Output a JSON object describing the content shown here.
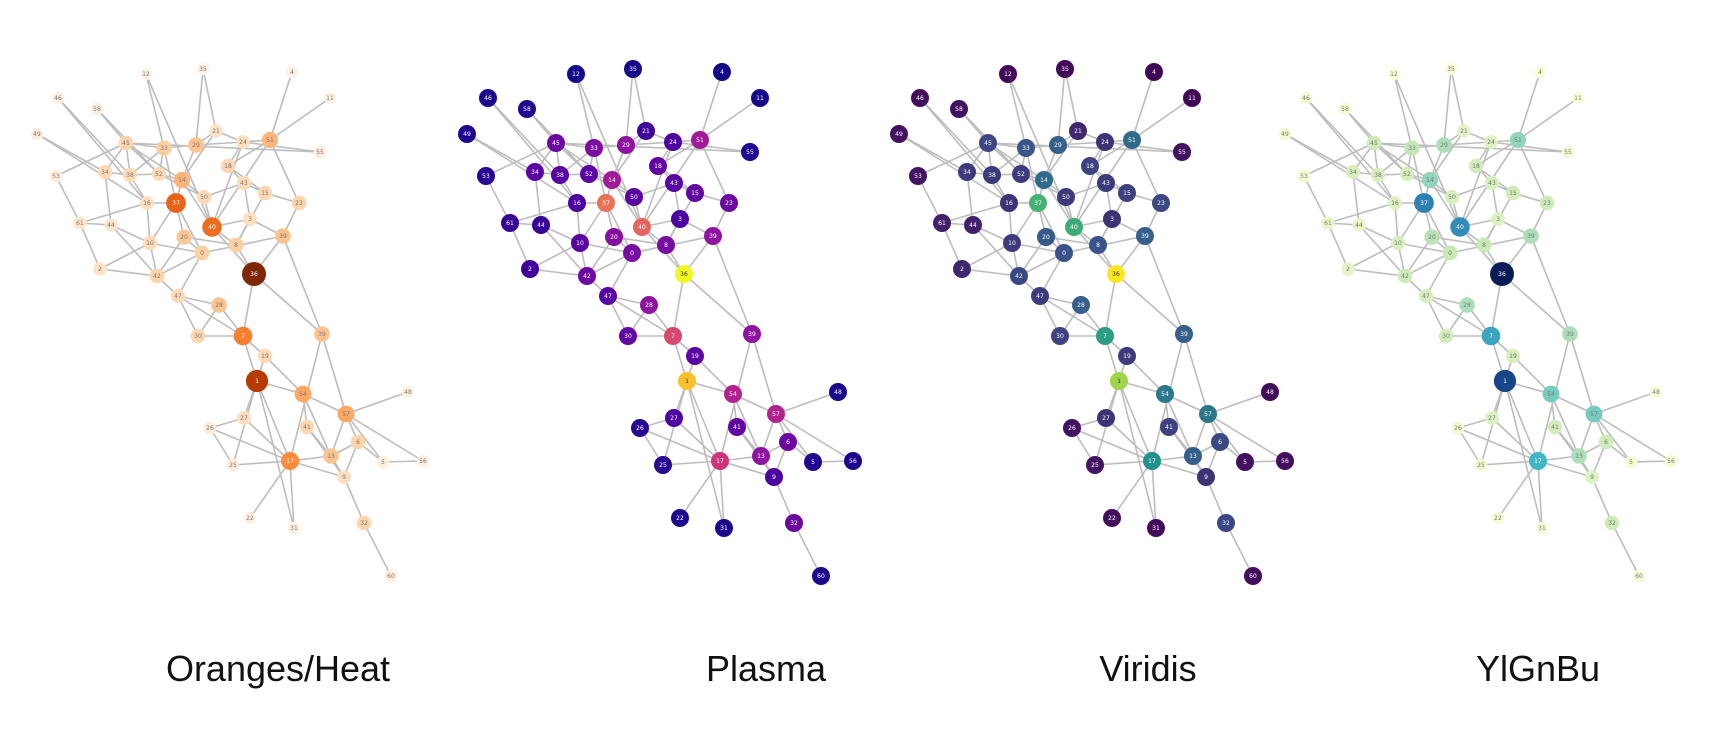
{
  "panels": [
    {
      "name": "oranges-heat",
      "title": "Oranges/Heat",
      "edge_color": "#bdbdbd",
      "light_text": "#666666",
      "dark_text": "#ffffff"
    },
    {
      "name": "plasma",
      "title": "Plasma",
      "edge_color": "#bdbdbd",
      "light_text": "#ffffff",
      "dark_text": "#ffffff"
    },
    {
      "name": "viridis",
      "title": "Viridis",
      "edge_color": "#bdbdbd",
      "light_text": "#ffffff",
      "dark_text": "#ffffff"
    },
    {
      "name": "ylgnbu",
      "title": "YlGnBu",
      "edge_color": "#bdbdbd",
      "light_text": "#666666",
      "dark_text": "#ffffff"
    }
  ],
  "graph": {
    "nodes": [
      {
        "id": "0",
        "level": 0.25
      },
      {
        "id": "1",
        "level": 0.85
      },
      {
        "id": "2",
        "level": 0.12
      },
      {
        "id": "3",
        "level": 0.15
      },
      {
        "id": "4",
        "level": 0.02
      },
      {
        "id": "5",
        "level": 0.05
      },
      {
        "id": "6",
        "level": 0.22
      },
      {
        "id": "7",
        "level": 0.55
      },
      {
        "id": "8",
        "level": 0.25
      },
      {
        "id": "9",
        "level": 0.15
      },
      {
        "id": "10",
        "level": 0.18
      },
      {
        "id": "11",
        "level": 0.02
      },
      {
        "id": "12",
        "level": 0.02
      },
      {
        "id": "13",
        "level": 0.3
      },
      {
        "id": "14",
        "level": 0.35
      },
      {
        "id": "15",
        "level": 0.2
      },
      {
        "id": "16",
        "level": 0.15
      },
      {
        "id": "17",
        "level": 0.5
      },
      {
        "id": "18",
        "level": 0.2
      },
      {
        "id": "19",
        "level": 0.18
      },
      {
        "id": "20",
        "level": 0.28
      },
      {
        "id": "21",
        "level": 0.12
      },
      {
        "id": "22",
        "level": 0.04
      },
      {
        "id": "23",
        "level": 0.22
      },
      {
        "id": "24",
        "level": 0.15
      },
      {
        "id": "25",
        "level": 0.06
      },
      {
        "id": "26",
        "level": 0.06
      },
      {
        "id": "27",
        "level": 0.15
      },
      {
        "id": "28",
        "level": 0.3
      },
      {
        "id": "29",
        "level": 0.3
      },
      {
        "id": "30",
        "level": 0.2
      },
      {
        "id": "31",
        "level": 0.03
      },
      {
        "id": "32",
        "level": 0.22
      },
      {
        "id": "33",
        "level": 0.26
      },
      {
        "id": "34",
        "level": 0.18
      },
      {
        "id": "35",
        "level": 0.02
      },
      {
        "id": "36",
        "level": 1.0
      },
      {
        "id": "37",
        "level": 0.65
      },
      {
        "id": "38",
        "level": 0.18
      },
      {
        "id": "39",
        "level": 0.3
      },
      {
        "id": "40",
        "level": 0.62
      },
      {
        "id": "41",
        "level": 0.2
      },
      {
        "id": "42",
        "level": 0.22
      },
      {
        "id": "43",
        "level": 0.18
      },
      {
        "id": "44",
        "level": 0.1
      },
      {
        "id": "45",
        "level": 0.22
      },
      {
        "id": "46",
        "level": 0.04
      },
      {
        "id": "47",
        "level": 0.18
      },
      {
        "id": "48",
        "level": 0.03
      },
      {
        "id": "49",
        "level": 0.05
      },
      {
        "id": "50",
        "level": 0.18
      },
      {
        "id": "51",
        "level": 0.35
      },
      {
        "id": "52",
        "level": 0.18
      },
      {
        "id": "53",
        "level": 0.06
      },
      {
        "id": "54",
        "level": 0.4
      },
      {
        "id": "55",
        "level": 0.05
      },
      {
        "id": "56",
        "level": 0.04
      },
      {
        "id": "57",
        "level": 0.4
      },
      {
        "id": "58",
        "level": 0.05
      },
      {
        "id": "59",
        "level": 0.04
      },
      {
        "id": "60",
        "level": 0.04
      },
      {
        "id": "61",
        "level": 0.1
      }
    ],
    "edges": [
      [
        "46",
        "16"
      ],
      [
        "46",
        "38"
      ],
      [
        "58",
        "45"
      ],
      [
        "58",
        "52"
      ],
      [
        "12",
        "33"
      ],
      [
        "12",
        "40"
      ],
      [
        "35",
        "29"
      ],
      [
        "35",
        "21"
      ],
      [
        "49",
        "34"
      ],
      [
        "49",
        "16"
      ],
      [
        "4",
        "51"
      ],
      [
        "11",
        "51"
      ],
      [
        "55",
        "45"
      ],
      [
        "55",
        "24"
      ],
      [
        "53",
        "45"
      ],
      [
        "53",
        "61"
      ],
      [
        "45",
        "33"
      ],
      [
        "45",
        "14"
      ],
      [
        "45",
        "34"
      ],
      [
        "45",
        "38"
      ],
      [
        "45",
        "52"
      ],
      [
        "33",
        "29"
      ],
      [
        "33",
        "52"
      ],
      [
        "33",
        "37"
      ],
      [
        "33",
        "38"
      ],
      [
        "29",
        "21"
      ],
      [
        "29",
        "14"
      ],
      [
        "29",
        "24"
      ],
      [
        "21",
        "24"
      ],
      [
        "51",
        "24"
      ],
      [
        "51",
        "18"
      ],
      [
        "51",
        "23"
      ],
      [
        "51",
        "40"
      ],
      [
        "24",
        "18"
      ],
      [
        "18",
        "43"
      ],
      [
        "18",
        "15"
      ],
      [
        "34",
        "38"
      ],
      [
        "34",
        "44"
      ],
      [
        "38",
        "52"
      ],
      [
        "38",
        "16"
      ],
      [
        "52",
        "14"
      ],
      [
        "52",
        "50"
      ],
      [
        "14",
        "37"
      ],
      [
        "14",
        "50"
      ],
      [
        "14",
        "40"
      ],
      [
        "16",
        "37"
      ],
      [
        "16",
        "10"
      ],
      [
        "50",
        "40"
      ],
      [
        "50",
        "43"
      ],
      [
        "43",
        "15"
      ],
      [
        "43",
        "3"
      ],
      [
        "15",
        "23"
      ],
      [
        "15",
        "8"
      ],
      [
        "23",
        "39"
      ],
      [
        "37",
        "20"
      ],
      [
        "37",
        "0"
      ],
      [
        "20",
        "42"
      ],
      [
        "20",
        "0"
      ],
      [
        "40",
        "8"
      ],
      [
        "40",
        "3"
      ],
      [
        "40",
        "36"
      ],
      [
        "3",
        "39"
      ],
      [
        "3",
        "8"
      ],
      [
        "39",
        "36"
      ],
      [
        "39",
        "0"
      ],
      [
        "61",
        "44"
      ],
      [
        "61",
        "2"
      ],
      [
        "44",
        "10"
      ],
      [
        "44",
        "42"
      ],
      [
        "10",
        "42"
      ],
      [
        "10",
        "0"
      ],
      [
        "2",
        "42"
      ],
      [
        "42",
        "47"
      ],
      [
        "42",
        "0"
      ],
      [
        "47",
        "28"
      ],
      [
        "47",
        "30"
      ],
      [
        "28",
        "7"
      ],
      [
        "28",
        "30"
      ],
      [
        "30",
        "7"
      ],
      [
        "8",
        "36"
      ],
      [
        "0",
        "47"
      ],
      [
        "36",
        "7"
      ],
      [
        "36",
        "29b"
      ],
      [
        "7",
        "19"
      ],
      [
        "7",
        "1"
      ],
      [
        "19",
        "1"
      ],
      [
        "19",
        "54"
      ],
      [
        "1",
        "54"
      ],
      [
        "1",
        "27"
      ],
      [
        "1",
        "17"
      ],
      [
        "1",
        "25"
      ],
      [
        "27",
        "26"
      ],
      [
        "27",
        "17"
      ],
      [
        "26",
        "17"
      ],
      [
        "25",
        "17"
      ],
      [
        "17",
        "22"
      ],
      [
        "17",
        "31"
      ],
      [
        "17",
        "13"
      ],
      [
        "17",
        "9"
      ],
      [
        "54",
        "57"
      ],
      [
        "54",
        "41"
      ],
      [
        "54",
        "13"
      ],
      [
        "57",
        "48"
      ],
      [
        "57",
        "6"
      ],
      [
        "57",
        "5"
      ],
      [
        "57",
        "56"
      ],
      [
        "57",
        "13"
      ],
      [
        "41",
        "13"
      ],
      [
        "41",
        "9"
      ],
      [
        "13",
        "6"
      ],
      [
        "13",
        "9"
      ],
      [
        "6",
        "5"
      ],
      [
        "6",
        "9"
      ],
      [
        "5",
        "56"
      ],
      [
        "9",
        "32"
      ],
      [
        "32",
        "60"
      ],
      [
        "39",
        "29b"
      ],
      [
        "29b",
        "57"
      ],
      [
        "29b",
        "17"
      ],
      [
        "31",
        "1"
      ],
      [
        "26",
        "25"
      ],
      [
        "24",
        "40"
      ],
      [
        "21",
        "14"
      ],
      [
        "20",
        "8"
      ],
      [
        "10",
        "37"
      ],
      [
        "2",
        "10"
      ],
      [
        "61",
        "16"
      ],
      [
        "47",
        "7"
      ]
    ]
  }
}
